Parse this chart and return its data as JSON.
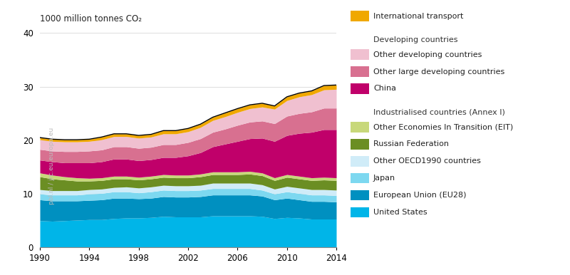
{
  "years": [
    1990,
    1991,
    1992,
    1993,
    1994,
    1995,
    1996,
    1997,
    1998,
    1999,
    2000,
    2001,
    2002,
    2003,
    2004,
    2005,
    2006,
    2007,
    2008,
    2009,
    2010,
    2011,
    2012,
    2013,
    2014
  ],
  "series": {
    "United States": [
      5.0,
      4.9,
      5.0,
      5.1,
      5.2,
      5.2,
      5.4,
      5.5,
      5.5,
      5.6,
      5.8,
      5.7,
      5.7,
      5.7,
      5.9,
      5.9,
      5.9,
      5.9,
      5.8,
      5.4,
      5.6,
      5.5,
      5.3,
      5.3,
      5.3
    ],
    "European Union (EU28)": [
      3.9,
      3.8,
      3.7,
      3.6,
      3.6,
      3.7,
      3.8,
      3.7,
      3.6,
      3.6,
      3.7,
      3.7,
      3.7,
      3.8,
      3.9,
      3.9,
      3.9,
      3.9,
      3.8,
      3.5,
      3.6,
      3.4,
      3.3,
      3.3,
      3.2
    ],
    "Japan": [
      1.1,
      1.1,
      1.1,
      1.1,
      1.2,
      1.2,
      1.2,
      1.2,
      1.1,
      1.2,
      1.2,
      1.2,
      1.2,
      1.2,
      1.2,
      1.2,
      1.2,
      1.2,
      1.1,
      1.1,
      1.2,
      1.2,
      1.2,
      1.2,
      1.2
    ],
    "Other OECD1990 countries": [
      0.8,
      0.8,
      0.8,
      0.8,
      0.8,
      0.8,
      0.8,
      0.9,
      0.9,
      0.9,
      0.9,
      0.9,
      0.9,
      0.9,
      1.0,
      1.0,
      1.0,
      1.0,
      1.0,
      0.9,
      1.0,
      1.0,
      1.0,
      1.0,
      1.0
    ],
    "Russian Federation": [
      2.4,
      2.2,
      2.0,
      1.8,
      1.6,
      1.6,
      1.6,
      1.5,
      1.5,
      1.5,
      1.5,
      1.5,
      1.5,
      1.6,
      1.6,
      1.6,
      1.6,
      1.7,
      1.7,
      1.6,
      1.7,
      1.7,
      1.7,
      1.8,
      1.8
    ],
    "Other Economies In Transition (EIT)": [
      0.7,
      0.7,
      0.6,
      0.6,
      0.5,
      0.5,
      0.5,
      0.5,
      0.5,
      0.5,
      0.5,
      0.5,
      0.5,
      0.5,
      0.5,
      0.5,
      0.5,
      0.5,
      0.5,
      0.5,
      0.5,
      0.5,
      0.5,
      0.5,
      0.5
    ],
    "China": [
      2.4,
      2.5,
      2.6,
      2.8,
      2.9,
      3.0,
      3.2,
      3.2,
      3.1,
      3.1,
      3.2,
      3.3,
      3.6,
      4.0,
      4.7,
      5.2,
      5.7,
      6.1,
      6.5,
      6.8,
      7.3,
      8.0,
      8.5,
      8.9,
      9.0
    ],
    "Other large developing countries": [
      2.0,
      2.0,
      2.1,
      2.1,
      2.2,
      2.2,
      2.3,
      2.3,
      2.3,
      2.3,
      2.4,
      2.4,
      2.5,
      2.6,
      2.7,
      2.8,
      3.0,
      3.1,
      3.2,
      3.3,
      3.6,
      3.7,
      3.8,
      4.0,
      4.0
    ],
    "Other developing countries": [
      1.8,
      1.8,
      1.8,
      1.8,
      1.8,
      1.9,
      1.9,
      1.9,
      1.9,
      1.9,
      2.0,
      2.0,
      2.0,
      2.1,
      2.2,
      2.3,
      2.4,
      2.5,
      2.6,
      2.7,
      2.9,
      3.1,
      3.2,
      3.4,
      3.5
    ],
    "International transport": [
      0.4,
      0.4,
      0.4,
      0.4,
      0.4,
      0.5,
      0.5,
      0.5,
      0.5,
      0.5,
      0.6,
      0.6,
      0.6,
      0.6,
      0.6,
      0.7,
      0.7,
      0.7,
      0.7,
      0.6,
      0.7,
      0.7,
      0.7,
      0.8,
      0.8
    ]
  },
  "colors": {
    "United States": "#00b5e8",
    "European Union (EU28)": "#0090c0",
    "Japan": "#7dd8f0",
    "Other OECD1990 countries": "#d0ecf8",
    "Russian Federation": "#6b8e23",
    "Other Economies In Transition (EIT)": "#c8d87a",
    "China": "#c0006a",
    "Other large developing countries": "#d87090",
    "Other developing countries": "#f0c0d0",
    "International transport": "#f0a800"
  },
  "order": [
    "United States",
    "European Union (EU28)",
    "Japan",
    "Other OECD1990 countries",
    "Russian Federation",
    "Other Economies In Transition (EIT)",
    "China",
    "Other large developing countries",
    "Other developing countries",
    "International transport"
  ],
  "ylabel": "1000 million tonnes CO₂",
  "ylim": [
    0,
    40
  ],
  "yticks": [
    0,
    10,
    20,
    30,
    40
  ],
  "xticks": [
    1990,
    1994,
    1998,
    2002,
    2006,
    2010,
    2014
  ],
  "background_color": "#ffffff",
  "watermark": "pbl.nl / jrc.eu.europa.eu",
  "legend_items": [
    {
      "label": "International transport",
      "color": "#f0a800",
      "type": "patch"
    },
    {
      "label": "",
      "color": null,
      "type": "spacer"
    },
    {
      "label": "Developing countries",
      "color": null,
      "type": "header"
    },
    {
      "label": "Other developing countries",
      "color": "#f0c0d0",
      "type": "patch"
    },
    {
      "label": "Other large developing countries",
      "color": "#d87090",
      "type": "patch"
    },
    {
      "label": "China",
      "color": "#c0006a",
      "type": "patch"
    },
    {
      "label": "",
      "color": null,
      "type": "spacer"
    },
    {
      "label": "Industrialised countries (Annex I)",
      "color": null,
      "type": "header"
    },
    {
      "label": "Other Economies In Transition (EIT)",
      "color": "#c8d87a",
      "type": "patch"
    },
    {
      "label": "Russian Federation",
      "color": "#6b8e23",
      "type": "patch"
    },
    {
      "label": "Other OECD1990 countries",
      "color": "#d0ecf8",
      "type": "patch"
    },
    {
      "label": "Japan",
      "color": "#7dd8f0",
      "type": "patch"
    },
    {
      "label": "European Union (EU28)",
      "color": "#0090c0",
      "type": "patch"
    },
    {
      "label": "United States",
      "color": "#00b5e8",
      "type": "patch"
    }
  ]
}
